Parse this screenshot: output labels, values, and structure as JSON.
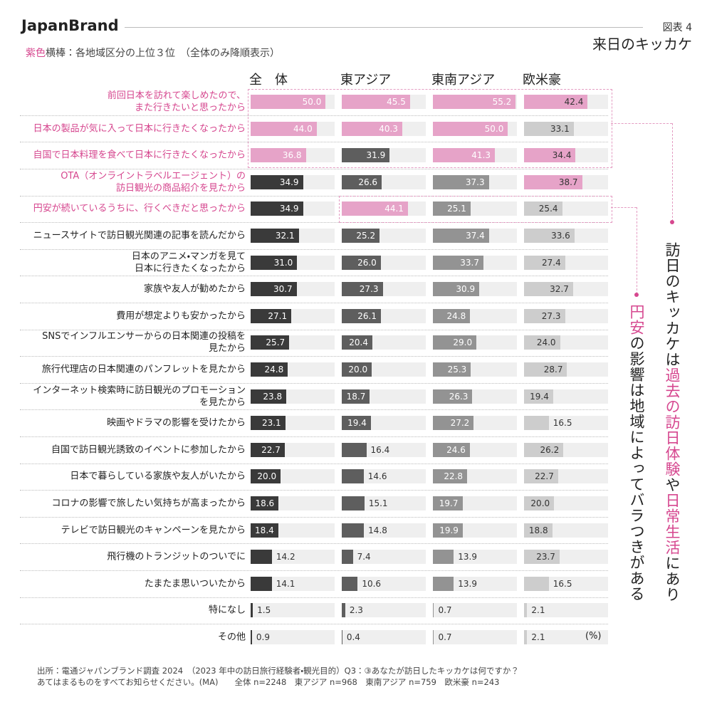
{
  "chart_data": {
    "type": "bar",
    "brand": "JapanBrand",
    "figure_label": "図表 4",
    "title": "来日のキッカケ",
    "subtitle": [
      {
        "text": "紫色",
        "color": "#d6478f"
      },
      {
        "text": "横棒：各地域区分の上位３位　（全体のみ降順表示）",
        "color": "#444444"
      }
    ],
    "unit": "(%)",
    "xlim": [
      0,
      56
    ],
    "highlight_color": "#e6a3c8",
    "highlight_text_color": "#d6478f",
    "highlighted_categories": [
      0,
      1,
      2,
      3,
      4
    ],
    "categories": [
      "前回日本を訪れて楽しめたので、\nまた行きたいと思ったから",
      "日本の製品が気に入って日本に行きたくなったから",
      "自国で日本料理を食べて日本に行きたくなったから",
      "OTA（オンライントラベルエージェント）の\n訪日観光の商品紹介を見たから",
      "円安が続いているうちに、行くべきだと思ったから",
      "ニュースサイトで訪日観光関連の記事を読んだから",
      "日本のアニメ・マンガを見て\n日本に行きたくなったから",
      "家族や友人が勧めたから",
      "費用が想定よりも安かったから",
      "SNSでインフルエンサーからの日本関連の投稿を\n見たから",
      "旅行代理店の日本関連のパンフレットを見たから",
      "インターネット検索時に訪日観光のプロモーション\nを見たから",
      "映画やドラマの影響を受けたから",
      "自国で訪日観光誘致のイベントに参加したから",
      "日本で暮らしている家族や友人がいたから",
      "コロナの影響で旅したい気持ちが高まったから",
      "テレビで訪日観光のキャンペーンを見たから",
      "飛行機のトランジットのついでに",
      "たまたま思いついたから",
      "特になし",
      "その他"
    ],
    "series": [
      {
        "name": "全　体",
        "color": "#3a3a3a",
        "label_color": "#ffffff",
        "highlighted": [
          0,
          1,
          2
        ],
        "values": [
          50.0,
          44.0,
          36.8,
          34.9,
          34.9,
          32.1,
          31.0,
          30.7,
          27.1,
          25.7,
          24.8,
          23.8,
          23.1,
          22.7,
          20.0,
          18.6,
          18.4,
          14.2,
          14.1,
          1.5,
          0.9
        ],
        "value_labels": [
          "50.0",
          "44.0",
          "36.8",
          "34.9",
          "34.9",
          "32.1",
          "31.0",
          "30.7",
          "27.1",
          "25.7",
          "24.8",
          "23.8",
          "23.1",
          "22.7",
          "20.0",
          "18.6",
          "18.4",
          "14.2",
          "14.1",
          "1.5",
          "0.9"
        ]
      },
      {
        "name": "東アジア",
        "color": "#5e5e5e",
        "label_color": "#ffffff",
        "highlighted": [
          0,
          1,
          4
        ],
        "values": [
          45.5,
          40.3,
          31.9,
          26.6,
          44.1,
          25.2,
          26.0,
          27.3,
          26.1,
          20.4,
          20.0,
          18.7,
          19.4,
          16.4,
          14.6,
          15.1,
          14.8,
          7.4,
          10.6,
          2.3,
          0.4
        ],
        "value_labels": [
          "45.5",
          "40.3",
          "31.9",
          "26.6",
          "44.1",
          "25.2",
          "26.0",
          "27.3",
          "26.1",
          "20.4",
          "20.0",
          "18.7",
          "19.4",
          "16.4",
          "14.6",
          "15.1",
          "14.8",
          "7.4",
          "10.6",
          "2.3",
          "0.4"
        ]
      },
      {
        "name": "東南アジア",
        "color": "#939393",
        "label_color": "#ffffff",
        "highlighted": [
          0,
          1,
          2
        ],
        "values": [
          55.2,
          50.0,
          41.3,
          37.3,
          25.1,
          37.4,
          33.7,
          30.9,
          24.8,
          29.0,
          25.3,
          26.3,
          27.2,
          24.6,
          22.8,
          19.7,
          19.9,
          13.9,
          13.9,
          0.7,
          0.7
        ],
        "value_labels": [
          "55.2",
          "50.0",
          "41.3",
          "37.3",
          "25.1",
          "37.4",
          "33.7",
          "30.9",
          "24.8",
          "29.0",
          "25.3",
          "26.3",
          "27.2",
          "24.6",
          "22.8",
          "19.7",
          "19.9",
          "13.9",
          "13.9",
          "0.7",
          "0.7"
        ]
      },
      {
        "name": "欧米豪",
        "color": "#cdcdcd",
        "label_color": "#333333",
        "highlighted": [
          0,
          2,
          3
        ],
        "values": [
          42.4,
          33.1,
          34.4,
          38.7,
          25.4,
          33.6,
          27.4,
          32.7,
          27.3,
          24.0,
          28.7,
          19.4,
          16.5,
          26.2,
          22.7,
          20.0,
          18.8,
          23.7,
          16.5,
          2.1,
          2.1
        ],
        "value_labels": [
          "42.4",
          "33.1",
          "34.4",
          "38.7",
          "25.4",
          "33.6",
          "27.4",
          "32.7",
          "27.3",
          "24.0",
          "28.7",
          "19.4",
          "16.5",
          "26.2",
          "22.7",
          "20.0",
          "18.8",
          "23.7",
          "16.5",
          "2.1",
          "2.1"
        ]
      }
    ],
    "annotations": [
      [
        {
          "text": "訪日のキッカケは",
          "color": "#222222"
        },
        {
          "text": "過去の訪日体験",
          "color": "#d6478f"
        },
        {
          "text": "や",
          "color": "#222222"
        },
        {
          "text": "日常生活",
          "color": "#d6478f"
        },
        {
          "text": "にあり",
          "color": "#222222"
        }
      ],
      [
        {
          "text": "円安",
          "color": "#d6478f"
        },
        {
          "text": "の影響は地域によってバラつきがある",
          "color": "#222222"
        }
      ]
    ],
    "source": [
      "出所：電通ジャパンブランド調査 2024　（2023 年中の訪日旅行経験者・観光目的）Q3：③あなたが訪日したキッカケは何ですか？",
      "あてはまるものをすべてお知らせください。(MA)　　全体 n=2248　東アジア n=968　東南アジア n=759　欧米豪 n=243"
    ]
  }
}
